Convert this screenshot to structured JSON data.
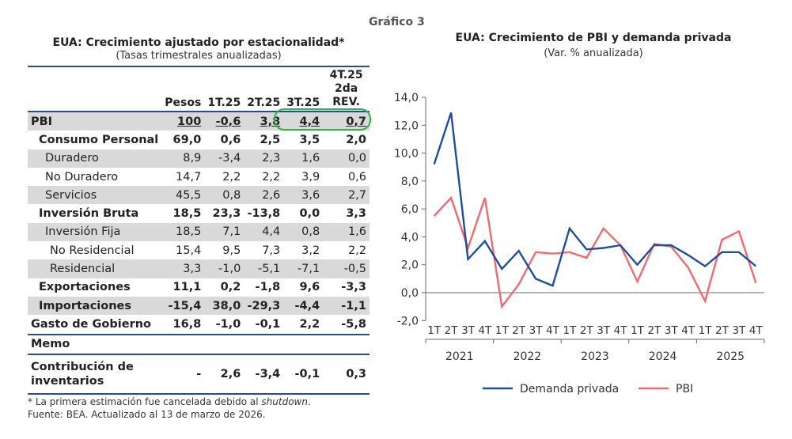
{
  "header": {
    "grafico_label": "Gráfico 3"
  },
  "table": {
    "title": "EUA: Crecimiento ajustado por estacionalidad*",
    "subtitle": "(Tasas trimestrales anualizadas)",
    "columns": [
      "",
      "Pesos",
      "1T.25",
      "2T.25",
      "3T.25",
      "4T.25"
    ],
    "last_column_sub": "2da REV.",
    "rows": [
      {
        "label": "PBI",
        "values": [
          "100",
          "-0,6",
          "3,8",
          "4,4",
          "0,7"
        ],
        "style": "pbi"
      },
      {
        "label": "Consumo Personal",
        "values": [
          "69,0",
          "0,6",
          "2,5",
          "3,5",
          "2,0"
        ],
        "style": "bold"
      },
      {
        "label": "Duradero",
        "values": [
          "8,9",
          "-3,4",
          "2,3",
          "1,6",
          "0,0"
        ],
        "style": "shade"
      },
      {
        "label": "No Duradero",
        "values": [
          "14,7",
          "2,2",
          "2,2",
          "3,9",
          "0,6"
        ],
        "style": "plain"
      },
      {
        "label": "Servicios",
        "values": [
          "45,5",
          "0,8",
          "2,6",
          "3,6",
          "2,7"
        ],
        "style": "shade"
      },
      {
        "label": "Inversión Bruta",
        "values": [
          "18,5",
          "23,3",
          "-13,8",
          "0,0",
          "3,3"
        ],
        "style": "bold"
      },
      {
        "label": "Inversión Fija",
        "values": [
          "18,5",
          "7,1",
          "4,4",
          "0,8",
          "1,6"
        ],
        "style": "shade"
      },
      {
        "label": "No Residencial",
        "values": [
          "15,4",
          "9,5",
          "7,3",
          "3,2",
          "2,2"
        ],
        "style": "plain"
      },
      {
        "label": "Residencial",
        "values": [
          "3,3",
          "-1,0",
          "-5,1",
          "-7,1",
          "-0,5"
        ],
        "style": "shade"
      },
      {
        "label": "Exportaciones",
        "values": [
          "11,1",
          "0,2",
          "-1,8",
          "9,6",
          "-3,3"
        ],
        "style": "bold"
      },
      {
        "label": "Importaciones",
        "values": [
          "-15,4",
          "38,0",
          "-29,3",
          "-4,4",
          "-1,1"
        ],
        "style": "bold-shade"
      },
      {
        "label": "Gasto de Gobierno",
        "values": [
          "16,8",
          "-1,0",
          "-0,1",
          "2,2",
          "-5,8"
        ],
        "style": "bold"
      }
    ],
    "memo_label": "Memo",
    "memo_row": {
      "label_line1": "Contribución de",
      "label_line2": "inventarios",
      "values": [
        "-",
        "2,6",
        "-3,4",
        "-0,1",
        "0,3"
      ]
    },
    "highlight_color": "#2fb34a"
  },
  "footnotes": {
    "note_prefix": "* La primera estimación fue cancelada debido al ",
    "note_italic": "shutdown",
    "note_suffix": ".",
    "source": "Fuente: BEA. Actualizado al 13 de marzo de 2026."
  },
  "chart_data": {
    "type": "line",
    "title": "EUA: Crecimiento de PBI y demanda privada",
    "subtitle": "(Var. % anualizada)",
    "xlabel": "",
    "ylabel": "",
    "ylim": [
      -2,
      14
    ],
    "yticks": [
      14,
      12,
      10,
      8,
      6,
      4,
      2,
      0,
      -2
    ],
    "ytick_labels": [
      "14,0",
      "12,0",
      "10,0",
      "8,0",
      "6,0",
      "4,0",
      "2,0",
      "0,0",
      "-2,0"
    ],
    "quarter_labels": [
      "1T",
      "2T",
      "3T",
      "4T"
    ],
    "years": [
      "2021",
      "2022",
      "2023",
      "2024",
      "2025"
    ],
    "x": [
      "1T21",
      "2T21",
      "3T21",
      "4T21",
      "1T22",
      "2T22",
      "3T22",
      "4T22",
      "1T23",
      "2T23",
      "3T23",
      "4T23",
      "1T24",
      "2T24",
      "3T24",
      "4T24",
      "1T25",
      "2T25",
      "3T25",
      "4T25"
    ],
    "grid": false,
    "legend_position": "bottom",
    "series": [
      {
        "name": "Demanda privada",
        "color": "#1f4e9c",
        "values": [
          9.2,
          12.9,
          2.4,
          3.7,
          1.7,
          3.0,
          1.0,
          0.5,
          4.6,
          3.1,
          3.2,
          3.4,
          2.0,
          3.4,
          3.4,
          2.7,
          1.9,
          2.9,
          2.9,
          1.9
        ]
      },
      {
        "name": "PBI",
        "color": "#f06b6f",
        "values": [
          5.5,
          6.8,
          3.2,
          6.8,
          -1.0,
          0.6,
          2.9,
          2.8,
          2.9,
          2.5,
          4.6,
          3.4,
          0.8,
          3.5,
          3.3,
          1.8,
          -0.6,
          3.8,
          4.4,
          0.7
        ]
      }
    ]
  }
}
